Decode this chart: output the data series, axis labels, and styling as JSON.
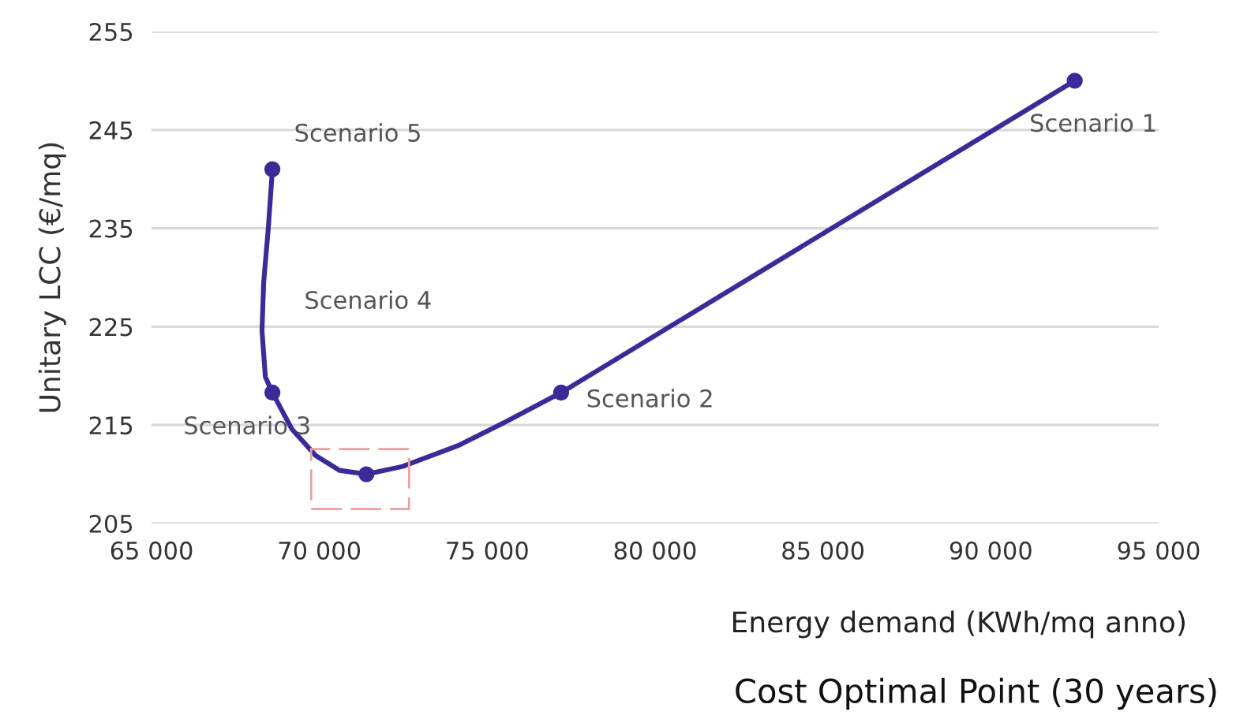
{
  "chart_data": {
    "type": "line",
    "title": "Cost Optimal Point (30 years)",
    "xlabel": "Energy demand (KWh/mq anno)",
    "ylabel": "Unitary LCC (€/mq)",
    "series": [
      {
        "color": "#3a2a9a",
        "marker": "none",
        "x": [
          68600,
          68480,
          68340,
          68290,
          68390,
          68600,
          69180,
          69890,
          70600,
          71400,
          72480,
          74120,
          75530,
          77200,
          92500
        ],
        "values": [
          241,
          235.1,
          229.5,
          224.6,
          219.9,
          218.3,
          214.6,
          211.9,
          210.4,
          210,
          210.8,
          212.9,
          215.3,
          218.3,
          250
        ]
      },
      {
        "type": "scatter",
        "color": "#3a2a9a",
        "marker": "circle",
        "x": [
          68600,
          68600,
          71400,
          77200,
          92500
        ],
        "values": [
          241,
          218.3,
          210,
          218.3,
          250
        ]
      }
    ],
    "annotations": [
      "Scenario 1",
      "Scenario 2",
      "Scenario 3",
      "Scenario 4",
      "Scenario 5"
    ],
    "xlim": [
      65000,
      95000
    ],
    "ylim": [
      205,
      255
    ],
    "xticks": [
      {
        "value": 65000,
        "label": "65 000"
      },
      {
        "value": 70000,
        "label": "70 000"
      },
      {
        "value": 75000,
        "label": "75 000"
      },
      {
        "value": 80000,
        "label": "80 000"
      },
      {
        "value": 85000,
        "label": "85 000"
      },
      {
        "value": 90000,
        "label": "90 000"
      },
      {
        "value": 95000,
        "label": "95 000"
      }
    ],
    "yticks": [
      205,
      215,
      225,
      235,
      245,
      255
    ],
    "grid": "y",
    "line_style": "solid"
  }
}
